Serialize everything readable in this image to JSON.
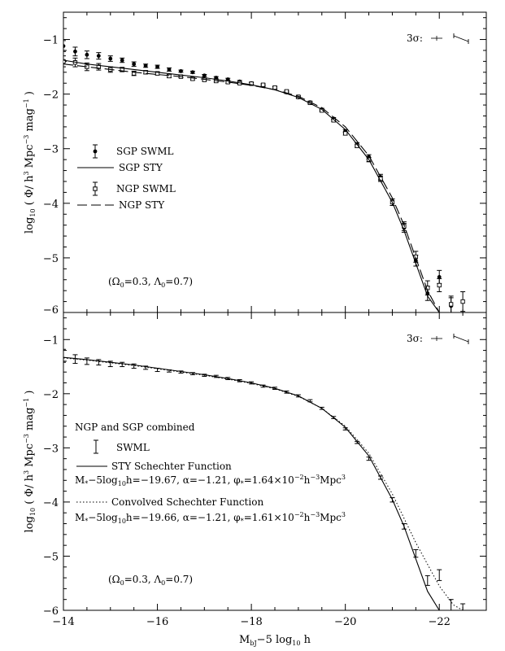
{
  "chart_data": [
    {
      "type": "scatter",
      "panel": "top",
      "title": "",
      "xlabel": "M_bJ - 5 log10 h",
      "ylabel": "log10 ( Φ/ h³ Mpc⁻³ mag⁻¹ )",
      "ylabel_parts": {
        "pre": "log",
        "sub": "10",
        "mid": " ( Φ/ h",
        "sup1": "3",
        "mid2": " Mpc",
        "sup2": "−3",
        "mid3": " mag",
        "sup3": "−1",
        "post": " )"
      },
      "xlim": [
        -14,
        -23
      ],
      "ylim": [
        -6,
        -0.5
      ],
      "x_ticks": [
        -14,
        -16,
        -18,
        -20,
        -22
      ],
      "x_tick_labels": [
        "−14",
        "−16",
        "−18",
        "−20",
        "−22"
      ],
      "y_ticks": [
        -6,
        -5,
        -4,
        -3,
        -2,
        -1
      ],
      "y_tick_labels": [
        "−6",
        "−5",
        "−4",
        "−3",
        "−2",
        "−1"
      ],
      "grid": false,
      "legend_position": "left-center",
      "legend": [
        {
          "label": "SGP SWML",
          "style": "filled-circle-errorbar"
        },
        {
          "label": "SGP STY",
          "style": "solid-line"
        },
        {
          "label": "NGP SWML",
          "style": "open-square-errorbar"
        },
        {
          "label": "NGP STY",
          "style": "long-dash-line"
        }
      ],
      "annotation": "(Ω₀=0.3, Λ₀=0.7)",
      "annotation_parts": {
        "open": "(Ω",
        "sub1": "0",
        "mid": "=0.3, Λ",
        "sub2": "0",
        "close": "=0.7)"
      },
      "sigma_label": "3σ:",
      "series": [
        {
          "name": "SGP SWML",
          "marker": "filled-circle",
          "x": [
            -14.0,
            -14.25,
            -14.5,
            -14.75,
            -15.0,
            -15.25,
            -15.5,
            -15.75,
            -16.0,
            -16.25,
            -16.5,
            -16.75,
            -17.0,
            -17.25,
            -17.5,
            -17.75,
            -18.0,
            -18.25,
            -18.5,
            -18.75,
            -19.0,
            -19.25,
            -19.5,
            -19.75,
            -20.0,
            -20.25,
            -20.5,
            -20.75,
            -21.0,
            -21.25,
            -21.5,
            -21.75,
            -22.0,
            -22.25
          ],
          "y": [
            -1.12,
            -1.22,
            -1.28,
            -1.3,
            -1.35,
            -1.38,
            -1.45,
            -1.48,
            -1.5,
            -1.55,
            -1.58,
            -1.6,
            -1.66,
            -1.7,
            -1.73,
            -1.77,
            -1.8,
            -1.85,
            -1.89,
            -1.97,
            -2.06,
            -2.15,
            -2.28,
            -2.45,
            -2.68,
            -2.92,
            -3.15,
            -3.52,
            -3.98,
            -4.45,
            -5.05,
            -5.65,
            -5.35,
            -5.88
          ],
          "yerr": [
            0.1,
            0.08,
            0.07,
            0.06,
            0.05,
            0.04,
            0.04,
            0.03,
            0.03,
            0.03,
            0.02,
            0.02,
            0.02,
            0.02,
            0.02,
            0.02,
            0.02,
            0.02,
            0.02,
            0.02,
            0.02,
            0.02,
            0.02,
            0.02,
            0.03,
            0.03,
            0.04,
            0.05,
            0.06,
            0.08,
            0.1,
            0.13,
            0.12,
            0.15
          ]
        },
        {
          "name": "NGP SWML",
          "marker": "open-square",
          "x": [
            -14.0,
            -14.25,
            -14.5,
            -14.75,
            -15.0,
            -15.25,
            -15.5,
            -15.75,
            -16.0,
            -16.25,
            -16.5,
            -16.75,
            -17.0,
            -17.25,
            -17.5,
            -17.75,
            -18.0,
            -18.25,
            -18.5,
            -18.75,
            -19.0,
            -19.25,
            -19.5,
            -19.75,
            -20.0,
            -20.25,
            -20.5,
            -20.75,
            -21.0,
            -21.25,
            -21.5,
            -21.75,
            -22.0,
            -22.25,
            -22.5
          ],
          "y": [
            -1.4,
            -1.42,
            -1.5,
            -1.5,
            -1.55,
            -1.55,
            -1.62,
            -1.6,
            -1.62,
            -1.67,
            -1.68,
            -1.72,
            -1.74,
            -1.76,
            -1.78,
            -1.8,
            -1.81,
            -1.83,
            -1.88,
            -1.95,
            -2.05,
            -2.16,
            -2.3,
            -2.48,
            -2.72,
            -2.95,
            -3.2,
            -3.55,
            -3.98,
            -4.42,
            -4.98,
            -5.55,
            -5.5,
            -5.85,
            -5.8
          ],
          "yerr": [
            0.1,
            0.08,
            0.07,
            0.06,
            0.05,
            0.04,
            0.04,
            0.03,
            0.03,
            0.03,
            0.02,
            0.02,
            0.02,
            0.02,
            0.02,
            0.02,
            0.02,
            0.02,
            0.02,
            0.02,
            0.02,
            0.02,
            0.02,
            0.02,
            0.03,
            0.03,
            0.04,
            0.05,
            0.06,
            0.08,
            0.1,
            0.13,
            0.12,
            0.15,
            0.18
          ]
        },
        {
          "name": "SGP STY",
          "line": "solid",
          "x": [
            -14.0,
            -14.5,
            -15.0,
            -15.5,
            -16.0,
            -16.5,
            -17.0,
            -17.5,
            -18.0,
            -18.5,
            -19.0,
            -19.5,
            -20.0,
            -20.5,
            -21.0,
            -21.25,
            -21.5,
            -21.75,
            -22.0,
            -22.15
          ],
          "y": [
            -1.38,
            -1.45,
            -1.5,
            -1.55,
            -1.6,
            -1.65,
            -1.7,
            -1.76,
            -1.83,
            -1.92,
            -2.06,
            -2.28,
            -2.65,
            -3.2,
            -3.98,
            -4.5,
            -5.1,
            -5.7,
            -6.0,
            -6.0
          ]
        },
        {
          "name": "NGP STY",
          "line": "long-dash",
          "x": [
            -14.0,
            -14.5,
            -15.0,
            -15.5,
            -16.0,
            -16.5,
            -17.0,
            -17.5,
            -18.0,
            -18.5,
            -19.0,
            -19.5,
            -20.0,
            -20.5,
            -21.0,
            -21.25,
            -21.5,
            -21.75,
            -22.0,
            -22.15
          ],
          "y": [
            -1.45,
            -1.5,
            -1.55,
            -1.6,
            -1.64,
            -1.68,
            -1.73,
            -1.78,
            -1.84,
            -1.92,
            -2.04,
            -2.25,
            -2.6,
            -3.13,
            -3.9,
            -4.4,
            -5.0,
            -5.6,
            -6.0,
            -6.0
          ]
        }
      ]
    },
    {
      "type": "line",
      "panel": "bottom",
      "title": "",
      "xlabel": "M_bJ - 5 log10 h",
      "ylabel": "log10 ( Φ/ h³ Mpc⁻³ mag⁻¹ )",
      "xlim": [
        -14,
        -23
      ],
      "ylim": [
        -6,
        -0.5
      ],
      "x_ticks": [
        -14,
        -16,
        -18,
        -20,
        -22
      ],
      "x_tick_labels": [
        "−14",
        "−16",
        "−18",
        "−20",
        "−22"
      ],
      "y_ticks": [
        -6,
        -5,
        -4,
        -3,
        -2,
        -1
      ],
      "y_tick_labels": [
        "−6",
        "−5",
        "−4",
        "−3",
        "−2",
        "−1"
      ],
      "grid": false,
      "legend_position": "left-center",
      "legend_title": "NGP and SGP combined",
      "legend": [
        {
          "label": "SWML",
          "style": "errorbar"
        },
        {
          "label": "STY Schechter Function",
          "style": "solid-line",
          "params": "M*−5log10h=−19.67, α=−1.21, φ*=1.64×10⁻²h⁻³Mpc³",
          "params_parts": {
            "a": "M",
            "a_sub": "*",
            "b": "−5log",
            "b_sub": "10",
            "c": "h=−19.67, α=−1.21, φ",
            "c_sub": "*",
            "d": "=1.64×10",
            "d_sup": "−2",
            "e": "h",
            "e_sup": "−3",
            "f": "Mpc",
            "f_sup": "3"
          }
        },
        {
          "label": "Convolved Schechter Function",
          "style": "dotted-line",
          "params": "M*−5log10h=−19.66, α=−1.21, φ*=1.61×10⁻²h⁻³Mpc³",
          "params_parts": {
            "a": "M",
            "a_sub": "*",
            "b": "−5log",
            "b_sub": "10",
            "c": "h=−19.66, α=−1.21, φ",
            "c_sub": "*",
            "d": "=1.61×10",
            "d_sup": "−2",
            "e": "h",
            "e_sup": "−3",
            "f": "Mpc",
            "f_sup": "3"
          }
        }
      ],
      "annotation": "(Ω₀=0.3, Λ₀=0.7)",
      "sigma_label": "3σ:",
      "series": [
        {
          "name": "SWML",
          "marker": "errorbar",
          "x": [
            -14.0,
            -14.25,
            -14.5,
            -14.75,
            -15.0,
            -15.25,
            -15.5,
            -15.75,
            -16.0,
            -16.25,
            -16.5,
            -16.75,
            -17.0,
            -17.25,
            -17.5,
            -17.75,
            -18.0,
            -18.25,
            -18.5,
            -18.75,
            -19.0,
            -19.25,
            -19.5,
            -19.75,
            -20.0,
            -20.25,
            -20.5,
            -20.75,
            -21.0,
            -21.25,
            -21.5,
            -21.75,
            -22.0,
            -22.25,
            -22.5
          ],
          "y": [
            -1.3,
            -1.36,
            -1.4,
            -1.42,
            -1.45,
            -1.46,
            -1.49,
            -1.52,
            -1.56,
            -1.58,
            -1.6,
            -1.63,
            -1.66,
            -1.68,
            -1.72,
            -1.76,
            -1.8,
            -1.86,
            -1.9,
            -1.97,
            -2.04,
            -2.13,
            -2.27,
            -2.44,
            -2.65,
            -2.9,
            -3.2,
            -3.55,
            -3.96,
            -4.45,
            -4.95,
            -5.45,
            -5.35,
            -5.95,
            -6.0
          ],
          "yerr": [
            0.12,
            0.08,
            0.06,
            0.05,
            0.05,
            0.04,
            0.04,
            0.03,
            0.03,
            0.02,
            0.02,
            0.02,
            0.02,
            0.02,
            0.02,
            0.02,
            0.02,
            0.02,
            0.02,
            0.02,
            0.02,
            0.02,
            0.02,
            0.02,
            0.02,
            0.02,
            0.03,
            0.03,
            0.04,
            0.05,
            0.07,
            0.09,
            0.1,
            0.15,
            0.12
          ]
        },
        {
          "name": "STY Schechter Function",
          "line": "solid",
          "x": [
            -14.0,
            -14.5,
            -15.0,
            -15.5,
            -16.0,
            -16.5,
            -17.0,
            -17.5,
            -18.0,
            -18.5,
            -19.0,
            -19.5,
            -20.0,
            -20.5,
            -21.0,
            -21.25,
            -21.5,
            -21.75,
            -22.0,
            -22.15
          ],
          "y": [
            -1.33,
            -1.37,
            -1.42,
            -1.47,
            -1.53,
            -1.59,
            -1.65,
            -1.72,
            -1.8,
            -1.9,
            -2.04,
            -2.27,
            -2.62,
            -3.15,
            -3.95,
            -4.45,
            -5.05,
            -5.65,
            -6.0,
            -6.0
          ]
        },
        {
          "name": "Convolved Schechter Function",
          "line": "dotted",
          "x": [
            -14.0,
            -14.5,
            -15.0,
            -15.5,
            -16.0,
            -16.5,
            -17.0,
            -17.5,
            -18.0,
            -18.5,
            -19.0,
            -19.5,
            -20.0,
            -20.5,
            -21.0,
            -21.5,
            -22.0,
            -22.3,
            -22.5
          ],
          "y": [
            -1.34,
            -1.38,
            -1.43,
            -1.48,
            -1.54,
            -1.6,
            -1.66,
            -1.73,
            -1.81,
            -1.91,
            -2.05,
            -2.27,
            -2.6,
            -3.1,
            -3.85,
            -4.75,
            -5.55,
            -5.9,
            -6.0
          ]
        }
      ]
    }
  ]
}
